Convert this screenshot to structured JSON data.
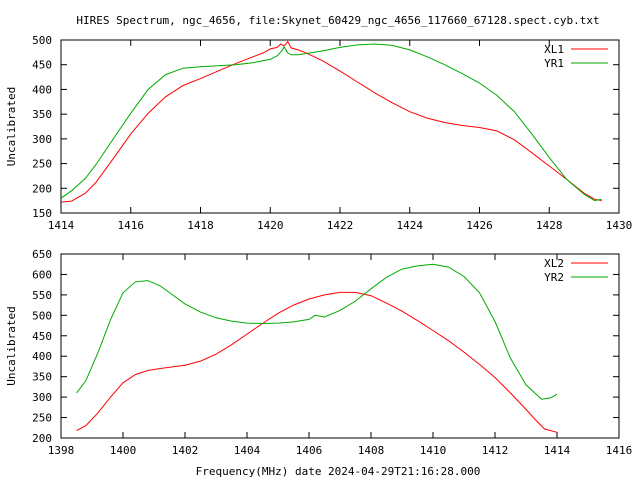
{
  "title": "HIRES Spectrum, ngc_4656, file:Skynet_60429_ngc_4656_117660_67128.spect.cyb.txt",
  "xlabel": "Frequency(MHz) date 2024-04-29T21:16:28.000",
  "chart_data": [
    {
      "type": "line",
      "ylabel": "Uncalibrated",
      "xlim": [
        1414,
        1430
      ],
      "ylim": [
        150,
        500
      ],
      "xticks": [
        1414,
        1416,
        1418,
        1420,
        1422,
        1424,
        1426,
        1428,
        1430
      ],
      "yticks": [
        150,
        200,
        250,
        300,
        350,
        400,
        450,
        500
      ],
      "grid": false,
      "legend_position": "top-right",
      "series": [
        {
          "name": "XL1",
          "color": "#ff0000",
          "x": [
            1414.0,
            1414.3,
            1414.7,
            1415.0,
            1415.5,
            1416.0,
            1416.5,
            1417.0,
            1417.5,
            1418.0,
            1418.5,
            1419.0,
            1419.5,
            1419.8,
            1420.0,
            1420.2,
            1420.3,
            1420.4,
            1420.5,
            1420.6,
            1420.8,
            1421.0,
            1421.5,
            1422.0,
            1422.5,
            1423.0,
            1423.5,
            1424.0,
            1424.5,
            1425.0,
            1425.5,
            1426.0,
            1426.5,
            1427.0,
            1427.5,
            1428.0,
            1428.5,
            1429.0,
            1429.3,
            1429.5
          ],
          "y": [
            172,
            174,
            190,
            212,
            260,
            310,
            352,
            385,
            408,
            422,
            437,
            452,
            466,
            474,
            482,
            485,
            492,
            488,
            497,
            484,
            480,
            475,
            458,
            437,
            415,
            393,
            373,
            355,
            342,
            333,
            327,
            323,
            316,
            298,
            272,
            245,
            218,
            190,
            178,
            175
          ]
        },
        {
          "name": "YR1",
          "color": "#00aa00",
          "x": [
            1414.0,
            1414.3,
            1414.7,
            1415.0,
            1415.5,
            1416.0,
            1416.5,
            1417.0,
            1417.5,
            1418.0,
            1418.5,
            1419.0,
            1419.5,
            1420.0,
            1420.2,
            1420.35,
            1420.4,
            1420.5,
            1420.6,
            1420.8,
            1421.0,
            1421.5,
            1422.0,
            1422.5,
            1423.0,
            1423.5,
            1424.0,
            1424.5,
            1425.0,
            1425.5,
            1426.0,
            1426.5,
            1427.0,
            1427.5,
            1428.0,
            1428.5,
            1429.0,
            1429.3,
            1429.5
          ],
          "y": [
            180,
            195,
            220,
            248,
            300,
            352,
            400,
            430,
            443,
            446,
            448,
            450,
            454,
            461,
            468,
            480,
            486,
            474,
            470,
            470,
            472,
            478,
            485,
            490,
            492,
            489,
            480,
            466,
            450,
            432,
            413,
            388,
            355,
            310,
            262,
            218,
            188,
            175,
            178
          ]
        }
      ]
    },
    {
      "type": "line",
      "ylabel": "Uncalibrated",
      "xlim": [
        1398,
        1416
      ],
      "ylim": [
        200,
        650
      ],
      "xticks": [
        1398,
        1400,
        1402,
        1404,
        1406,
        1408,
        1410,
        1412,
        1414,
        1416
      ],
      "yticks": [
        200,
        250,
        300,
        350,
        400,
        450,
        500,
        550,
        600,
        650
      ],
      "grid": false,
      "legend_position": "top-right",
      "series": [
        {
          "name": "XL2",
          "color": "#ff0000",
          "x": [
            1398.5,
            1398.8,
            1399.2,
            1399.6,
            1400.0,
            1400.4,
            1400.8,
            1401.2,
            1401.6,
            1402.0,
            1402.5,
            1403.0,
            1403.5,
            1404.0,
            1404.5,
            1405.0,
            1405.5,
            1406.0,
            1406.5,
            1407.0,
            1407.5,
            1408.0,
            1408.5,
            1409.0,
            1409.5,
            1410.0,
            1410.5,
            1411.0,
            1411.5,
            1412.0,
            1412.5,
            1413.0,
            1413.3,
            1413.6,
            1414.0
          ],
          "y": [
            218,
            230,
            262,
            300,
            335,
            355,
            365,
            370,
            374,
            378,
            388,
            405,
            428,
            454,
            480,
            505,
            525,
            540,
            550,
            556,
            556,
            548,
            530,
            510,
            487,
            463,
            438,
            410,
            380,
            348,
            310,
            270,
            245,
            222,
            214
          ]
        },
        {
          "name": "YR2",
          "color": "#00aa00",
          "x": [
            1398.5,
            1398.8,
            1399.2,
            1399.6,
            1400.0,
            1400.4,
            1400.8,
            1401.2,
            1401.6,
            1402.0,
            1402.5,
            1403.0,
            1403.5,
            1404.0,
            1404.5,
            1405.0,
            1405.5,
            1406.0,
            1406.2,
            1406.5,
            1407.0,
            1407.5,
            1408.0,
            1408.5,
            1409.0,
            1409.5,
            1410.0,
            1410.5,
            1411.0,
            1411.5,
            1412.0,
            1412.5,
            1413.0,
            1413.5,
            1413.8,
            1414.0
          ],
          "y": [
            310,
            340,
            410,
            490,
            555,
            582,
            585,
            572,
            550,
            528,
            508,
            494,
            486,
            481,
            480,
            481,
            484,
            490,
            500,
            496,
            512,
            535,
            565,
            593,
            613,
            621,
            625,
            618,
            595,
            555,
            485,
            395,
            330,
            295,
            298,
            307
          ]
        }
      ]
    }
  ]
}
